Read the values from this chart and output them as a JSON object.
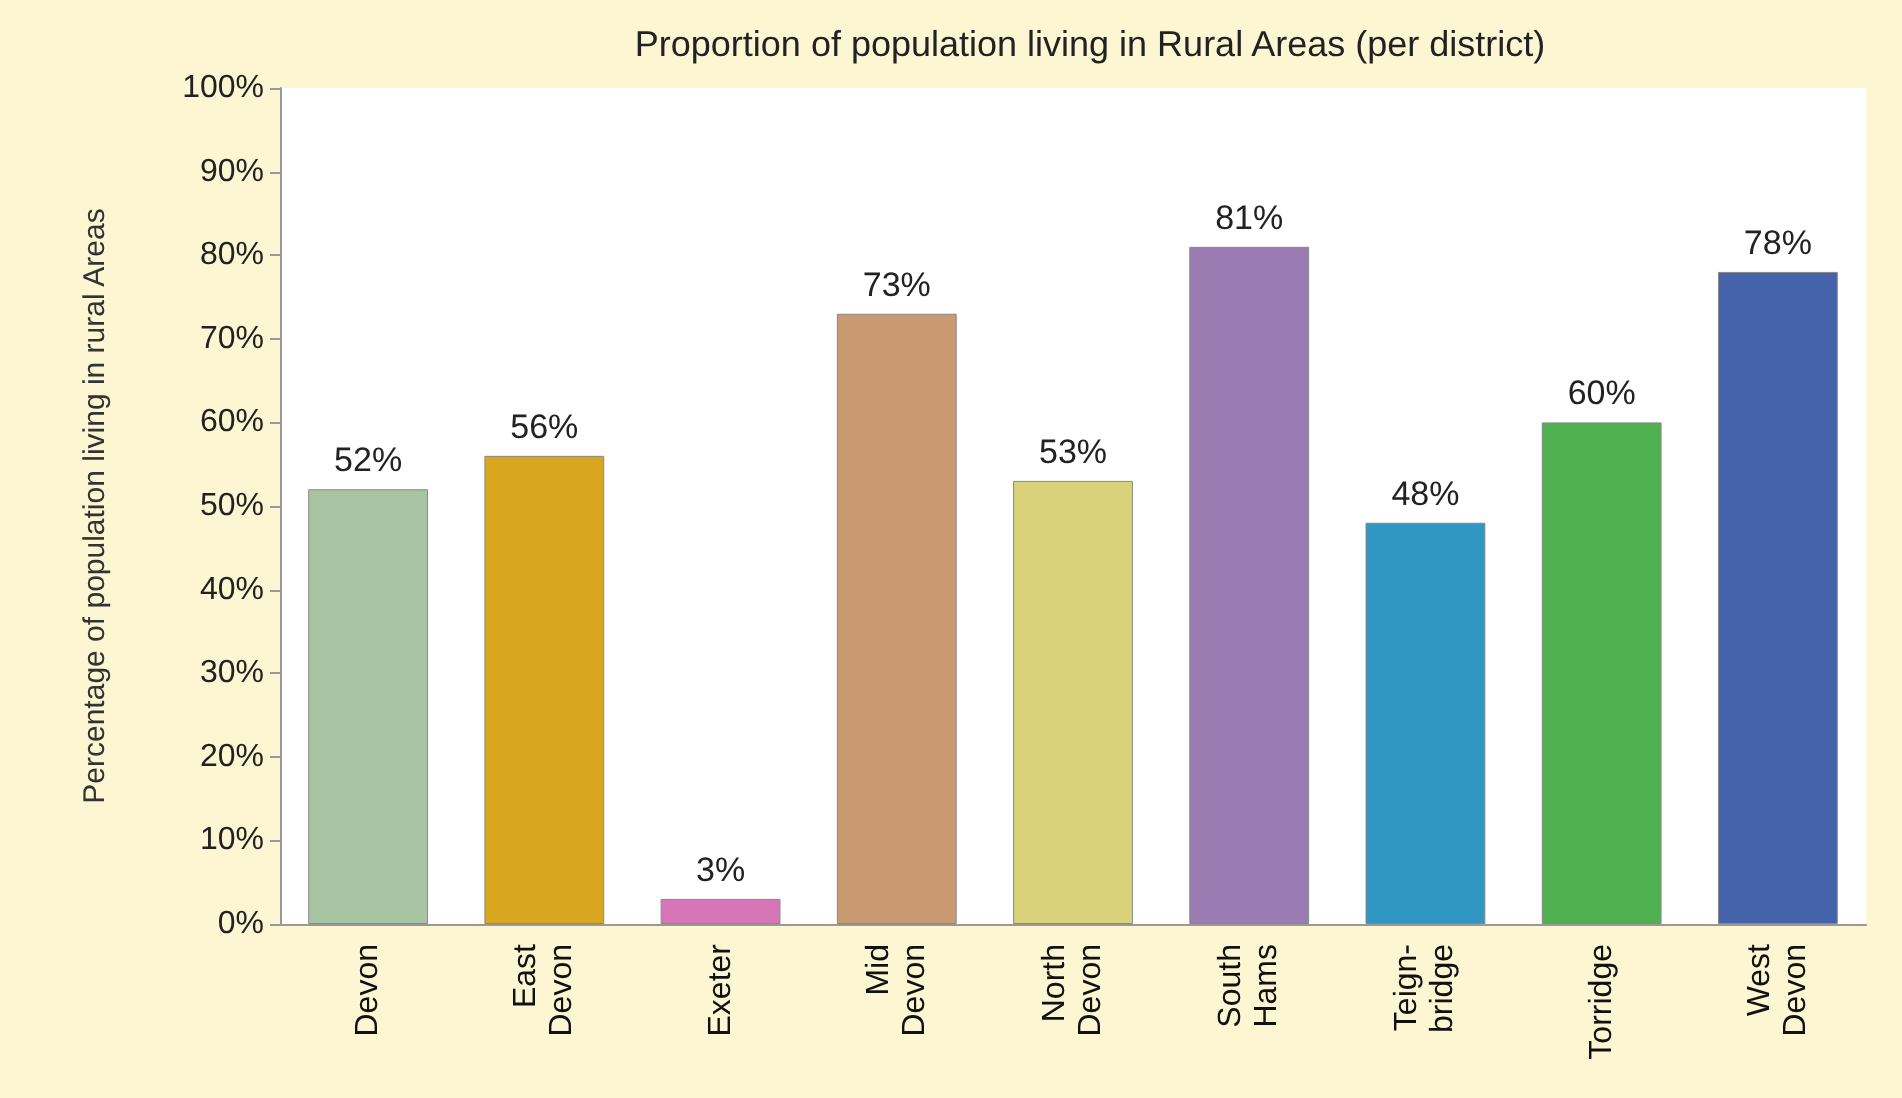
{
  "chart_data": {
    "type": "bar",
    "title": "Proportion of population living in Rural Areas (per district)",
    "ylabel": "Percentage of population living in rural Areas",
    "categories": [
      "Devon",
      "East Devon",
      "Exeter",
      "Mid Devon",
      "North Devon",
      "South Hams",
      "Teign-bridge",
      "Torridge",
      "West Devon"
    ],
    "values": [
      52,
      56,
      3,
      73,
      53,
      81,
      48,
      60,
      78
    ],
    "value_labels": [
      "52%",
      "56%",
      "3%",
      "73%",
      "53%",
      "81%",
      "48%",
      "60%",
      "78%"
    ],
    "colors": [
      "#a9c4a2",
      "#d9a620",
      "#d676b6",
      "#c99a72",
      "#d9d27a",
      "#9a7cb2",
      "#2f98c2",
      "#4fb14f",
      "#4463aa"
    ],
    "ylim": [
      0,
      100
    ],
    "yticks": [
      {
        "value": 0,
        "label": "0%"
      },
      {
        "value": 10,
        "label": "10%"
      },
      {
        "value": 20,
        "label": "20%"
      },
      {
        "value": 30,
        "label": "30%"
      },
      {
        "value": 40,
        "label": "40%"
      },
      {
        "value": 50,
        "label": "50%"
      },
      {
        "value": 60,
        "label": "60%"
      },
      {
        "value": 70,
        "label": "70%"
      },
      {
        "value": 80,
        "label": "80%"
      },
      {
        "value": 90,
        "label": "90%"
      },
      {
        "value": 100,
        "label": "100%"
      }
    ],
    "grid": false
  }
}
